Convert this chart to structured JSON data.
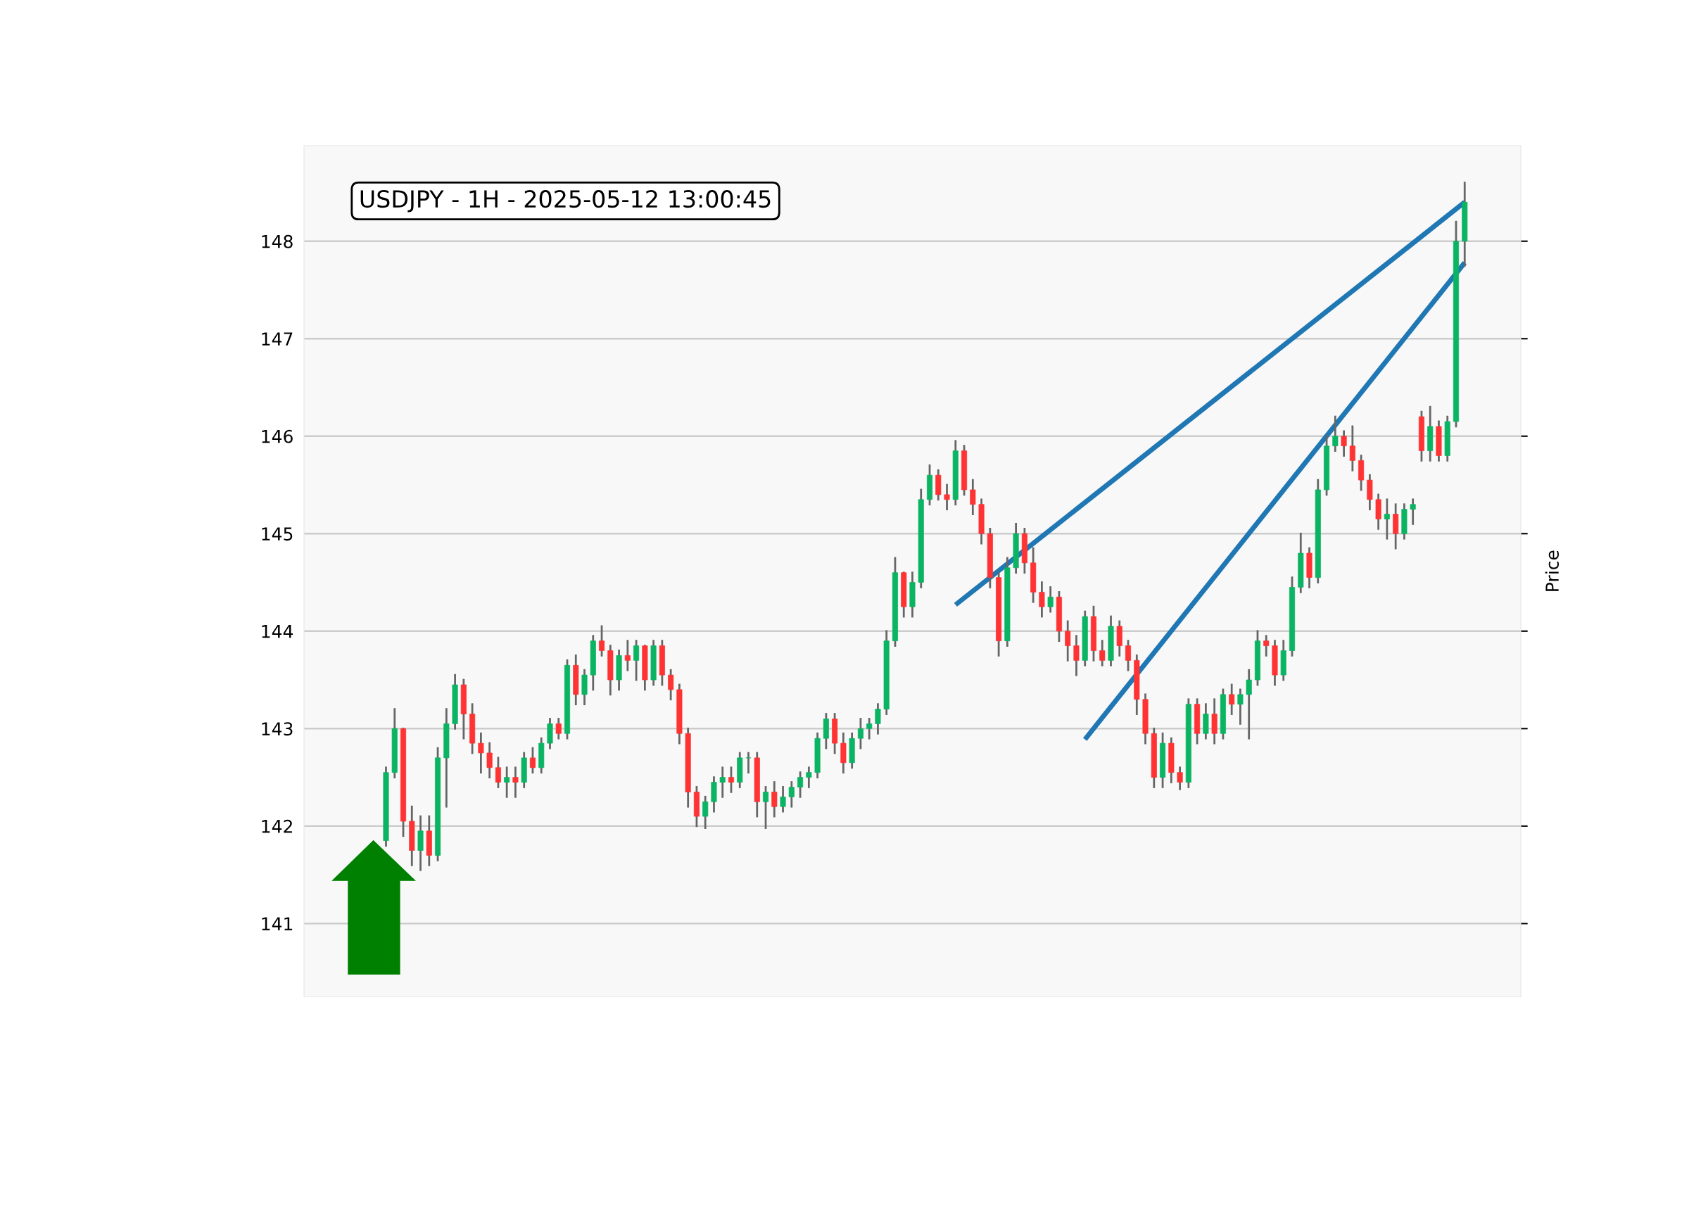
{
  "chart_data": {
    "type": "candlestick",
    "title": "USDJPY - 1H - 2025-05-12 13:00:45",
    "ylabel": "Price",
    "ylim": [
      140.25,
      148.98
    ],
    "yticks": [
      141,
      142,
      143,
      144,
      145,
      146,
      147,
      148
    ],
    "grid": "y",
    "tick_labels": "y",
    "categories": [
      null,
      null,
      null,
      null,
      null,
      null,
      null,
      null,
      null,
      null,
      null,
      null,
      null,
      null,
      null,
      null,
      null,
      null,
      null,
      null,
      null,
      null,
      null,
      null,
      null,
      null,
      null,
      null,
      null,
      null,
      null,
      null,
      null,
      null,
      null,
      null,
      null,
      null,
      null,
      null,
      null,
      null,
      null,
      null,
      null,
      null,
      null,
      null,
      null,
      null,
      null,
      null,
      null,
      null,
      null,
      null,
      null,
      null,
      null,
      null,
      null,
      null,
      null,
      null,
      null,
      null,
      null,
      null,
      null,
      null,
      null,
      null,
      null,
      null,
      null,
      null,
      null,
      null,
      null,
      null,
      null,
      null,
      null,
      null,
      null,
      null,
      null,
      null,
      null,
      null,
      null,
      null,
      null,
      null,
      null,
      null,
      null,
      null,
      null,
      null,
      null,
      null,
      null,
      null,
      null,
      null,
      null,
      null,
      null,
      null,
      null,
      null,
      null,
      null,
      null,
      null,
      null,
      null,
      null,
      null,
      null,
      null,
      null,
      null,
      null,
      null,
      null,
      null,
      null,
      null,
      null,
      null,
      null,
      null,
      null,
      null,
      null,
      null,
      null,
      null,
      null
    ],
    "colors": [
      null,
      null,
      null,
      null,
      null,
      null,
      null,
      null,
      null,
      "#0ab463",
      "#0ab463",
      "#ff3333",
      "#ff3333",
      "#0ab463",
      "#ff3333",
      "#0ab463",
      "#0ab463",
      "#0ab463",
      "#ff3333",
      "#ff3333",
      "#ff3333",
      "#ff3333",
      "#ff3333",
      "#0ab463",
      "#ff3333",
      "#0ab463",
      "#ff3333",
      "#0ab463",
      "#0ab463",
      "#ff3333",
      "#0ab463",
      "#ff3333",
      "#0ab463",
      "#0ab463",
      "#ff3333",
      "#ff3333",
      "#0ab463",
      "#ff3333",
      "#0ab463",
      "#ff3333",
      "#0ab463",
      "#ff3333",
      "#ff3333",
      "#ff3333",
      "#ff3333",
      "#ff3333",
      "#0ab463",
      "#0ab463",
      "#0ab463",
      "#ff3333",
      "#0ab463",
      "#0ab463",
      "#ff3333",
      "#0ab463",
      "#ff3333",
      "#0ab463",
      "#0ab463",
      "#0ab463",
      "#0ab463",
      "#0ab463",
      "#0ab463",
      "#ff3333",
      "#ff3333",
      "#0ab463",
      "#0ab463",
      "#0ab463",
      "#0ab463",
      "#0ab463",
      "#0ab463",
      "#ff3333",
      "#0ab463",
      "#0ab463",
      "#0ab463",
      "#ff3333",
      "#ff3333",
      "#0ab463",
      "#ff3333",
      "#ff3333",
      "#ff3333",
      "#ff3333",
      "#ff3333",
      "#0ab463",
      "#0ab463",
      "#ff3333",
      "#ff3333",
      "#ff3333",
      "#0ab463",
      "#ff3333",
      "#ff3333",
      "#ff3333",
      "#0ab463",
      "#ff3333",
      "#ff3333",
      "#0ab463",
      "#ff3333",
      "#ff3333",
      "#ff3333",
      "#ff3333",
      "#ff3333",
      "#0ab463",
      "#ff3333",
      "#ff3333",
      "#0ab463",
      "#ff3333",
      "#0ab463",
      "#ff3333",
      "#0ab463",
      "#ff3333",
      "#0ab463",
      "#0ab463",
      "#0ab463",
      "#ff3333",
      "#ff3333",
      "#0ab463",
      "#0ab463",
      "#0ab463",
      "#ff3333",
      "#0ab463",
      "#0ab463",
      "#0ab463",
      "#ff3333",
      "#ff3333",
      "#ff3333",
      "#ff3333",
      "#ff3333",
      "#0ab463",
      "#ff3333",
      "#0ab463",
      "#0ab463",
      "#ff3333",
      "#0ab463",
      "#ff3333",
      "#0ab463",
      "#0ab463",
      "#0ab463",
      null,
      null,
      null,
      null,
      null,
      null
    ],
    "ohlc": [
      null,
      null,
      null,
      null,
      null,
      null,
      null,
      null,
      null,
      [
        141.85,
        142.6,
        141.8,
        142.55
      ],
      [
        142.55,
        143.2,
        142.5,
        143.0
      ],
      [
        143.0,
        143.0,
        141.9,
        142.05
      ],
      [
        142.05,
        142.2,
        141.6,
        141.75
      ],
      [
        141.75,
        142.1,
        141.55,
        141.95
      ],
      [
        141.95,
        142.1,
        141.6,
        141.7
      ],
      [
        141.7,
        142.8,
        141.65,
        142.7
      ],
      [
        142.7,
        143.2,
        142.2,
        143.05
      ],
      [
        143.05,
        143.55,
        143.0,
        143.45
      ],
      [
        143.45,
        143.5,
        142.9,
        143.15
      ],
      [
        143.15,
        143.25,
        142.75,
        142.85
      ],
      [
        142.85,
        142.95,
        142.55,
        142.75
      ],
      [
        142.75,
        142.85,
        142.5,
        142.6
      ],
      [
        142.6,
        142.7,
        142.4,
        142.45
      ],
      [
        142.45,
        142.6,
        142.3,
        142.5
      ],
      [
        142.5,
        142.6,
        142.3,
        142.45
      ],
      [
        142.45,
        142.75,
        142.4,
        142.7
      ],
      [
        142.7,
        142.8,
        142.55,
        142.6
      ],
      [
        142.6,
        142.9,
        142.55,
        142.85
      ],
      [
        142.85,
        143.1,
        142.8,
        143.05
      ],
      [
        143.05,
        143.1,
        142.9,
        142.95
      ],
      [
        142.95,
        143.7,
        142.9,
        143.65
      ],
      [
        143.65,
        143.75,
        143.25,
        143.35
      ],
      [
        143.35,
        143.6,
        143.25,
        143.55
      ],
      [
        143.55,
        143.95,
        143.4,
        143.9
      ],
      [
        143.9,
        144.05,
        143.75,
        143.8
      ],
      [
        143.8,
        143.85,
        143.35,
        143.5
      ],
      [
        143.5,
        143.8,
        143.4,
        143.75
      ],
      [
        143.75,
        143.9,
        143.6,
        143.7
      ],
      [
        143.7,
        143.9,
        143.5,
        143.85
      ],
      [
        143.85,
        143.85,
        143.4,
        143.5
      ],
      [
        143.5,
        143.9,
        143.45,
        143.85
      ],
      [
        143.85,
        143.9,
        143.45,
        143.55
      ],
      [
        143.55,
        143.6,
        143.3,
        143.4
      ],
      [
        143.4,
        143.45,
        142.85,
        142.95
      ],
      [
        142.95,
        143.0,
        142.2,
        142.35
      ],
      [
        142.35,
        142.4,
        142.0,
        142.1
      ],
      [
        142.1,
        142.3,
        141.98,
        142.25
      ],
      [
        142.25,
        142.5,
        142.15,
        142.45
      ],
      [
        142.45,
        142.6,
        142.3,
        142.5
      ],
      [
        142.5,
        142.6,
        142.35,
        142.45
      ],
      [
        142.45,
        142.75,
        142.4,
        142.7
      ],
      [
        142.7,
        142.75,
        142.55,
        142.7
      ],
      [
        142.7,
        142.75,
        142.1,
        142.25
      ],
      [
        142.25,
        142.4,
        141.98,
        142.35
      ],
      [
        142.35,
        142.45,
        142.1,
        142.2
      ],
      [
        142.2,
        142.4,
        142.15,
        142.3
      ],
      [
        142.3,
        142.45,
        142.2,
        142.4
      ],
      [
        142.4,
        142.55,
        142.3,
        142.5
      ],
      [
        142.5,
        142.6,
        142.4,
        142.55
      ],
      [
        142.55,
        142.95,
        142.5,
        142.9
      ],
      [
        142.9,
        143.15,
        142.8,
        143.1
      ],
      [
        143.1,
        143.15,
        142.75,
        142.85
      ],
      [
        142.85,
        142.95,
        142.55,
        142.65
      ],
      [
        142.65,
        142.95,
        142.6,
        142.9
      ],
      [
        142.9,
        143.1,
        142.8,
        143.0
      ],
      [
        143.0,
        143.1,
        142.9,
        143.05
      ],
      [
        143.05,
        143.25,
        142.95,
        143.2
      ],
      [
        143.2,
        144.0,
        143.15,
        143.9
      ],
      [
        143.9,
        144.75,
        143.85,
        144.6
      ],
      [
        144.6,
        144.6,
        144.15,
        144.25
      ],
      [
        144.25,
        144.6,
        144.15,
        144.5
      ],
      [
        144.5,
        145.45,
        144.45,
        145.35
      ],
      [
        145.35,
        145.7,
        145.3,
        145.6
      ],
      [
        145.6,
        145.65,
        145.35,
        145.4
      ],
      [
        145.4,
        145.5,
        145.25,
        145.35
      ],
      [
        145.35,
        145.95,
        145.3,
        145.85
      ],
      [
        145.85,
        145.9,
        145.4,
        145.45
      ],
      [
        145.45,
        145.55,
        145.2,
        145.3
      ],
      [
        145.3,
        145.35,
        144.9,
        145.0
      ],
      [
        145.0,
        145.05,
        144.45,
        144.55
      ],
      [
        144.55,
        144.6,
        143.75,
        143.9
      ],
      [
        143.9,
        144.75,
        143.85,
        144.65
      ],
      [
        144.65,
        145.1,
        144.6,
        145.0
      ],
      [
        145.0,
        145.05,
        144.6,
        144.7
      ],
      [
        144.7,
        144.85,
        144.3,
        144.4
      ],
      [
        144.4,
        144.5,
        144.15,
        144.25
      ],
      [
        144.25,
        144.45,
        144.2,
        144.35
      ],
      [
        144.35,
        144.4,
        143.9,
        144.0
      ],
      [
        144.0,
        144.1,
        143.7,
        143.85
      ],
      [
        143.85,
        143.95,
        143.55,
        143.7
      ],
      [
        143.7,
        144.2,
        143.65,
        144.15
      ],
      [
        144.15,
        144.25,
        143.7,
        143.8
      ],
      [
        143.8,
        143.9,
        143.65,
        143.7
      ],
      [
        143.7,
        144.15,
        143.65,
        144.05
      ],
      [
        144.05,
        144.1,
        143.75,
        143.85
      ],
      [
        143.85,
        143.9,
        143.6,
        143.7
      ],
      [
        143.7,
        143.75,
        143.15,
        143.3
      ],
      [
        143.3,
        143.35,
        142.85,
        142.95
      ],
      [
        142.95,
        143.0,
        142.4,
        142.5
      ],
      [
        142.5,
        142.95,
        142.4,
        142.85
      ],
      [
        142.85,
        142.9,
        142.45,
        142.55
      ],
      [
        142.55,
        142.6,
        142.38,
        142.45
      ],
      [
        142.45,
        143.3,
        142.4,
        143.25
      ],
      [
        143.25,
        143.3,
        142.85,
        142.95
      ],
      [
        142.95,
        143.25,
        142.9,
        143.15
      ],
      [
        143.15,
        143.3,
        142.85,
        142.95
      ],
      [
        142.95,
        143.4,
        142.9,
        143.35
      ],
      [
        143.35,
        143.45,
        143.15,
        143.25
      ],
      [
        143.25,
        143.4,
        143.05,
        143.35
      ],
      [
        143.35,
        143.6,
        142.9,
        143.5
      ],
      [
        143.5,
        144.0,
        143.45,
        143.9
      ],
      [
        143.9,
        143.95,
        143.75,
        143.85
      ],
      [
        143.85,
        143.9,
        143.45,
        143.55
      ],
      [
        143.55,
        143.9,
        143.5,
        143.8
      ],
      [
        143.8,
        144.55,
        143.75,
        144.45
      ],
      [
        144.45,
        145.0,
        144.4,
        144.8
      ],
      [
        144.8,
        144.85,
        144.45,
        144.55
      ],
      [
        144.55,
        145.55,
        144.5,
        145.45
      ],
      [
        145.45,
        146.0,
        145.4,
        145.9
      ],
      [
        145.9,
        146.2,
        145.85,
        146.0
      ],
      [
        146.0,
        146.05,
        145.8,
        145.9
      ],
      [
        145.9,
        146.1,
        145.65,
        145.75
      ],
      [
        145.75,
        145.8,
        145.45,
        145.55
      ],
      [
        145.55,
        145.6,
        145.25,
        145.35
      ],
      [
        145.35,
        145.4,
        145.05,
        145.15
      ],
      [
        145.15,
        145.35,
        144.95,
        145.2
      ],
      [
        145.2,
        145.3,
        144.85,
        145.0
      ],
      [
        145.0,
        145.3,
        144.95,
        145.25
      ],
      [
        145.25,
        145.35,
        145.1,
        145.3
      ],
      [
        146.2,
        146.25,
        145.75,
        145.85
      ],
      [
        145.85,
        146.3,
        145.75,
        146.1
      ],
      [
        146.1,
        146.15,
        145.75,
        145.8
      ],
      [
        145.8,
        146.2,
        145.75,
        146.15
      ],
      [
        146.15,
        148.2,
        146.1,
        148.0
      ],
      [
        148.0,
        148.6,
        147.75,
        148.4
      ],
      null,
      null,
      null,
      null,
      null,
      null
    ],
    "series": [
      {
        "type": "line",
        "color": "#1f77b4",
        "line_style": "solid",
        "values": [
          null,
          null,
          null,
          null,
          null,
          null,
          null,
          null,
          null,
          null,
          null,
          null,
          null,
          null,
          null,
          null,
          null,
          null,
          null,
          null,
          null,
          null,
          null,
          null,
          null,
          null,
          null,
          null,
          null,
          null,
          null,
          null,
          null,
          null,
          null,
          null,
          null,
          null,
          null,
          null,
          null,
          null,
          null,
          null,
          null,
          null,
          null,
          null,
          null,
          null,
          null,
          null,
          null,
          null,
          null,
          null,
          null,
          null,
          null,
          null,
          null,
          null,
          null,
          null,
          null,
          null,
          null,
          null,
          null,
          null,
          null,
          null,
          null,
          null,
          null,
          144.27,
          null,
          null,
          null,
          null,
          null,
          null,
          null,
          null,
          null,
          null,
          null,
          null,
          null,
          null,
          null,
          null,
          null,
          null,
          null,
          null,
          null,
          null,
          null,
          null,
          null,
          null,
          null,
          null,
          null,
          null,
          null,
          null,
          null,
          null,
          null,
          null,
          null,
          null,
          null,
          null,
          null,
          null,
          null,
          null,
          null,
          null,
          null,
          null,
          null,
          null,
          null,
          null,
          null,
          null,
          null,
          null,
          null,
          null,
          148.4,
          null,
          null,
          null,
          null,
          null,
          null
        ]
      },
      {
        "type": "line",
        "color": "#1f77b4",
        "line_style": "solid",
        "values": [
          null,
          null,
          null,
          null,
          null,
          null,
          null,
          null,
          null,
          null,
          null,
          null,
          null,
          null,
          null,
          null,
          null,
          null,
          null,
          null,
          null,
          null,
          null,
          null,
          null,
          null,
          null,
          null,
          null,
          null,
          null,
          null,
          null,
          null,
          null,
          null,
          null,
          null,
          null,
          null,
          null,
          null,
          null,
          null,
          null,
          null,
          null,
          null,
          null,
          null,
          null,
          null,
          null,
          null,
          null,
          null,
          null,
          null,
          null,
          null,
          null,
          null,
          null,
          null,
          null,
          null,
          null,
          null,
          null,
          null,
          null,
          null,
          null,
          null,
          null,
          null,
          null,
          null,
          null,
          null,
          null,
          null,
          null,
          null,
          null,
          null,
          null,
          null,
          null,
          null,
          142.89,
          null,
          null,
          null,
          null,
          null,
          null,
          null,
          null,
          null,
          null,
          null,
          null,
          null,
          null,
          null,
          null,
          null,
          null,
          null,
          null,
          null,
          null,
          null,
          null,
          null,
          null,
          null,
          null,
          null,
          null,
          null,
          null,
          null,
          null,
          null,
          null,
          null,
          null,
          null,
          null,
          null,
          null,
          null,
          147.78,
          null,
          null,
          null,
          null,
          null,
          null
        ]
      }
    ]
  }
}
